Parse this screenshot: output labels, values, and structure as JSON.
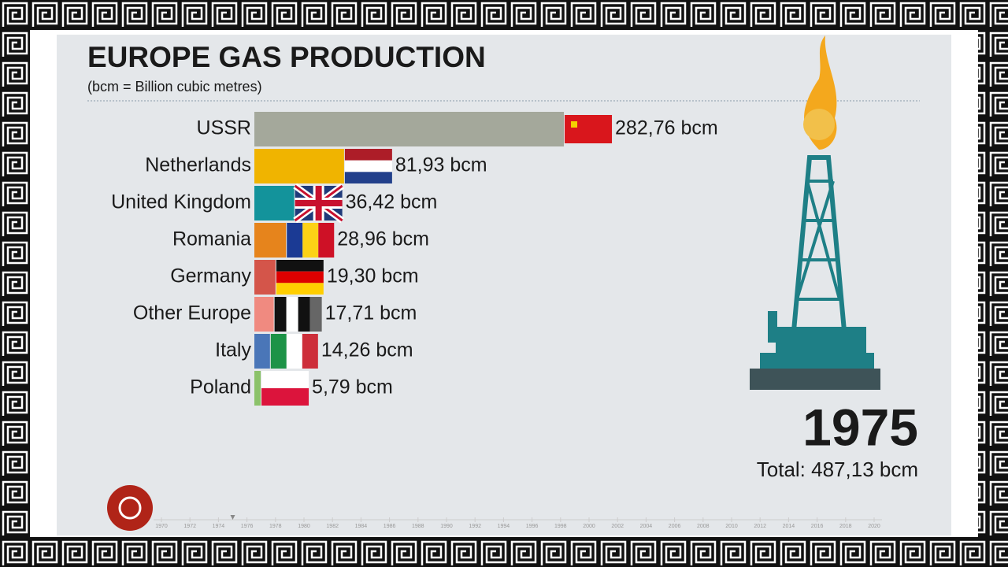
{
  "chart_data": {
    "type": "bar",
    "orientation": "horizontal",
    "title": "EUROPE GAS PRODUCTION",
    "subtitle": "(bcm = Billion cubic metres)",
    "categories": [
      "USSR",
      "Netherlands",
      "United Kingdom",
      "Romania",
      "Germany",
      "Other Europe",
      "Italy",
      "Poland"
    ],
    "values": [
      282.76,
      81.93,
      36.42,
      28.96,
      19.3,
      17.71,
      14.26,
      5.79
    ],
    "value_labels": [
      "282,76 bcm",
      "81,93 bcm",
      "36,42 bcm",
      "28,96 bcm",
      "19,30 bcm",
      "17,71 bcm",
      "14,26 bcm",
      "5,79 bcm"
    ],
    "colors": [
      "#a4a89b",
      "#f0b400",
      "#13939b",
      "#e6841c",
      "#d4554a",
      "#f08a80",
      "#4a76b8",
      "#8bc26a"
    ],
    "xlim": [
      0,
      400
    ],
    "year": 1975,
    "total_label": "Total: 487,13 bcm",
    "timeline": [
      1970,
      1972,
      1974,
      1976,
      1978,
      1980,
      1982,
      1984,
      1986,
      1988,
      1990,
      1992,
      1994,
      1996,
      1998,
      2000,
      2002,
      2004,
      2006,
      2008,
      2010,
      2012,
      2014,
      2016,
      2018,
      2020
    ]
  }
}
